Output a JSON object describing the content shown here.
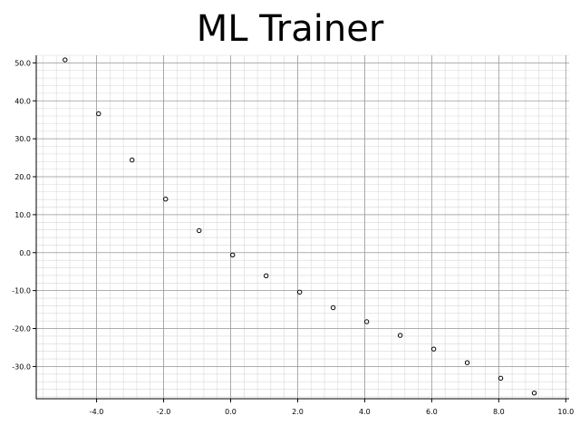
{
  "window": {
    "title": "ML Trainer"
  },
  "chart_data": {
    "type": "scatter",
    "title": "",
    "xlabel": "",
    "ylabel": "",
    "xlim": [
      -5.8,
      10.1
    ],
    "ylim": [
      -38.5,
      52.0
    ],
    "x_ticks": [
      -4.0,
      -2.0,
      0.0,
      2.0,
      4.0,
      6.0,
      8.0,
      10.0
    ],
    "y_ticks": [
      50.0,
      40.0,
      30.0,
      20.0,
      10.0,
      0.0,
      -10.0,
      -20.0,
      -30.0
    ],
    "x_tick_labels": [
      "-4.0",
      "-2.0",
      "0.0",
      "2.0",
      "4.0",
      "6.0",
      "8.0",
      "10.0"
    ],
    "y_tick_labels": [
      "50.0",
      "40.0",
      "30.0",
      "20.0",
      "10.0",
      "0.0",
      "-10.0",
      "-20.0",
      "-30.0"
    ],
    "grid": true,
    "minor_grid": true,
    "points": {
      "x": [
        -4.94,
        -3.94,
        -2.94,
        -1.94,
        -0.94,
        0.06,
        1.06,
        2.06,
        3.06,
        4.06,
        5.06,
        6.06,
        7.06,
        8.06,
        9.06
      ],
      "y": [
        50.8,
        36.6,
        24.4,
        14.1,
        5.8,
        -0.6,
        -6.1,
        -10.4,
        -14.5,
        -18.2,
        -21.8,
        -25.4,
        -29.0,
        -33.1,
        -37.0
      ]
    },
    "marker_color": "#000000",
    "major_grid_color": "#9a9a9a",
    "minor_grid_color": "#d8d8d8"
  }
}
